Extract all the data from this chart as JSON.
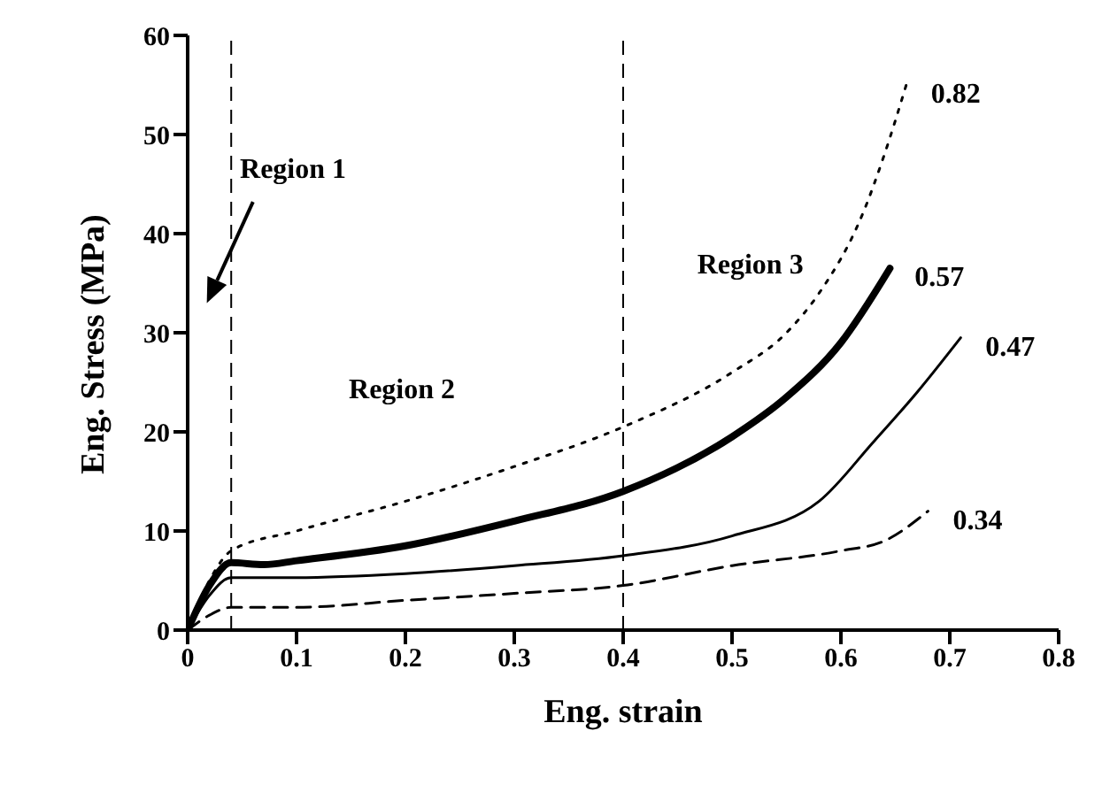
{
  "chart_data": {
    "type": "line",
    "xlabel": "Eng. strain",
    "ylabel": "Eng. Stress (MPa)",
    "xlim": [
      0,
      0.8
    ],
    "xticks": [
      0,
      0.1,
      0.2,
      0.3,
      0.4,
      0.5,
      0.6,
      0.7,
      0.8
    ],
    "ylim": [
      0,
      60
    ],
    "yticks": [
      0,
      10,
      20,
      30,
      40,
      50,
      60
    ],
    "grid": false,
    "legend": false,
    "marker": "none",
    "series": [
      {
        "name": "0.82",
        "color": "#000000",
        "line_style": "dotted",
        "x": [
          0,
          0.02,
          0.04,
          0.1,
          0.2,
          0.3,
          0.4,
          0.5,
          0.55,
          0.58,
          0.62,
          0.64,
          0.66
        ],
        "values": [
          0,
          5,
          8,
          10,
          13,
          16.5,
          20.5,
          26,
          30,
          34,
          42,
          48,
          55
        ]
      },
      {
        "name": "0.57",
        "color": "#000000",
        "line_style": "solid",
        "x": [
          0,
          0.02,
          0.04,
          0.07,
          0.1,
          0.2,
          0.3,
          0.4,
          0.5,
          0.55,
          0.6,
          0.645
        ],
        "values": [
          0,
          4.5,
          6.8,
          6.6,
          7,
          8.5,
          11,
          14,
          19.5,
          23.5,
          29,
          36.5
        ]
      },
      {
        "name": "0.47",
        "color": "#000000",
        "line_style": "solid",
        "x": [
          0,
          0.02,
          0.04,
          0.1,
          0.2,
          0.3,
          0.4,
          0.5,
          0.58,
          0.63,
          0.67,
          0.71
        ],
        "values": [
          0,
          3.5,
          5.3,
          5.3,
          5.7,
          6.5,
          7.5,
          9.5,
          13,
          19,
          24,
          29.5
        ]
      },
      {
        "name": "0.34",
        "color": "#000000",
        "line_style": "dashed",
        "x": [
          0,
          0.02,
          0.04,
          0.1,
          0.2,
          0.3,
          0.4,
          0.5,
          0.6,
          0.64,
          0.68
        ],
        "values": [
          0,
          1.5,
          2.3,
          2.3,
          3,
          3.7,
          4.5,
          6.5,
          8,
          9,
          12
        ]
      }
    ],
    "ref_lines": [
      {
        "axis": "x",
        "value": 0.04,
        "line_style": "dashed",
        "color": "#000000"
      },
      {
        "axis": "x",
        "value": 0.4,
        "line_style": "dashed",
        "color": "#000000"
      }
    ],
    "annotations": [
      "Region 1",
      "Region 2",
      "Region 3"
    ]
  }
}
